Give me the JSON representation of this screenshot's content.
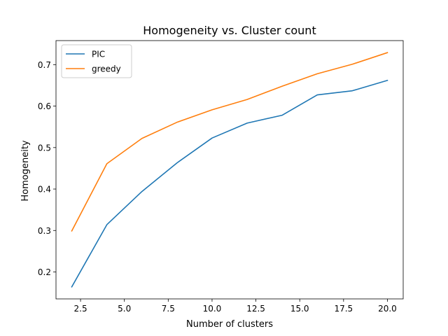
{
  "chart_data": {
    "type": "line",
    "title": "Homogeneity vs. Cluster count",
    "xlabel": "Number of clusters",
    "ylabel": "Homogeneity",
    "xlim": [
      1.1,
      20.9
    ],
    "ylim": [
      0.135,
      0.758
    ],
    "xticks": [
      2.5,
      5.0,
      7.5,
      10.0,
      12.5,
      15.0,
      17.5,
      20.0
    ],
    "xtick_labels": [
      "2.5",
      "5.0",
      "7.5",
      "10.0",
      "12.5",
      "15.0",
      "17.5",
      "20.0"
    ],
    "yticks": [
      0.2,
      0.3,
      0.4,
      0.5,
      0.6,
      0.7
    ],
    "ytick_labels": [
      "0.2",
      "0.3",
      "0.4",
      "0.5",
      "0.6",
      "0.7"
    ],
    "x": [
      2,
      4,
      6,
      8,
      10,
      12,
      14,
      16,
      18,
      20
    ],
    "series": [
      {
        "name": "PIC",
        "color": "#1f77b4",
        "values": [
          0.164,
          0.314,
          0.394,
          0.463,
          0.523,
          0.559,
          0.578,
          0.627,
          0.637,
          0.662
        ]
      },
      {
        "name": "greedy",
        "color": "#ff7f0e",
        "values": [
          0.299,
          0.461,
          0.522,
          0.561,
          0.591,
          0.616,
          0.648,
          0.678,
          0.701,
          0.729
        ]
      }
    ],
    "grid": false,
    "legend_position": "top-left"
  }
}
